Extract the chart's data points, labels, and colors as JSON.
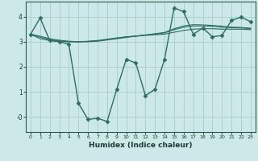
{
  "xlabel": "Humidex (Indice chaleur)",
  "ylabel": "",
  "xlim": [
    -0.5,
    23.5
  ],
  "ylim": [
    -0.6,
    4.6
  ],
  "bg_color": "#cce8e8",
  "grid_color": "#aacccc",
  "line_color": "#2e6e60",
  "series": [
    {
      "x": [
        0,
        1,
        2,
        3,
        4,
        5,
        6,
        7,
        8,
        9,
        10,
        11,
        12,
        13,
        14,
        15,
        16,
        17,
        18,
        19,
        20,
        21,
        22,
        23
      ],
      "y": [
        3.3,
        3.95,
        3.05,
        3.0,
        2.9,
        0.55,
        -0.1,
        -0.05,
        -0.18,
        1.1,
        2.3,
        2.15,
        0.85,
        1.1,
        2.3,
        4.35,
        4.2,
        3.3,
        3.55,
        3.2,
        3.25,
        3.85,
        3.98,
        3.8
      ],
      "marker": "D",
      "markersize": 2.5,
      "lw": 1.0
    },
    {
      "x": [
        0,
        1,
        2,
        3,
        4,
        5,
        6,
        7,
        8,
        9,
        10,
        11,
        12,
        13,
        14,
        15,
        16,
        17,
        18,
        19,
        20,
        21,
        22,
        23
      ],
      "y": [
        3.3,
        3.12,
        3.05,
        3.02,
        3.0,
        3.0,
        3.02,
        3.05,
        3.1,
        3.15,
        3.2,
        3.22,
        3.25,
        3.28,
        3.3,
        3.38,
        3.45,
        3.5,
        3.52,
        3.52,
        3.5,
        3.5,
        3.5,
        3.48
      ],
      "marker": null,
      "markersize": 0,
      "lw": 0.8
    },
    {
      "x": [
        0,
        1,
        2,
        3,
        4,
        5,
        6,
        7,
        8,
        9,
        10,
        11,
        12,
        13,
        14,
        15,
        16,
        17,
        18,
        19,
        20,
        21,
        22,
        23
      ],
      "y": [
        3.3,
        3.18,
        3.08,
        3.03,
        3.0,
        3.0,
        3.01,
        3.04,
        3.09,
        3.14,
        3.19,
        3.23,
        3.27,
        3.3,
        3.35,
        3.48,
        3.58,
        3.63,
        3.63,
        3.62,
        3.58,
        3.56,
        3.55,
        3.52
      ],
      "marker": null,
      "markersize": 0,
      "lw": 0.8
    },
    {
      "x": [
        0,
        1,
        2,
        3,
        4,
        5,
        6,
        7,
        8,
        9,
        10,
        11,
        12,
        13,
        14,
        15,
        16,
        17,
        18,
        19,
        20,
        21,
        22,
        23
      ],
      "y": [
        3.3,
        3.22,
        3.12,
        3.06,
        3.02,
        3.0,
        3.0,
        3.02,
        3.07,
        3.12,
        3.17,
        3.22,
        3.27,
        3.32,
        3.37,
        3.52,
        3.63,
        3.68,
        3.67,
        3.65,
        3.62,
        3.58,
        3.57,
        3.54
      ],
      "marker": null,
      "markersize": 0,
      "lw": 0.8
    }
  ]
}
